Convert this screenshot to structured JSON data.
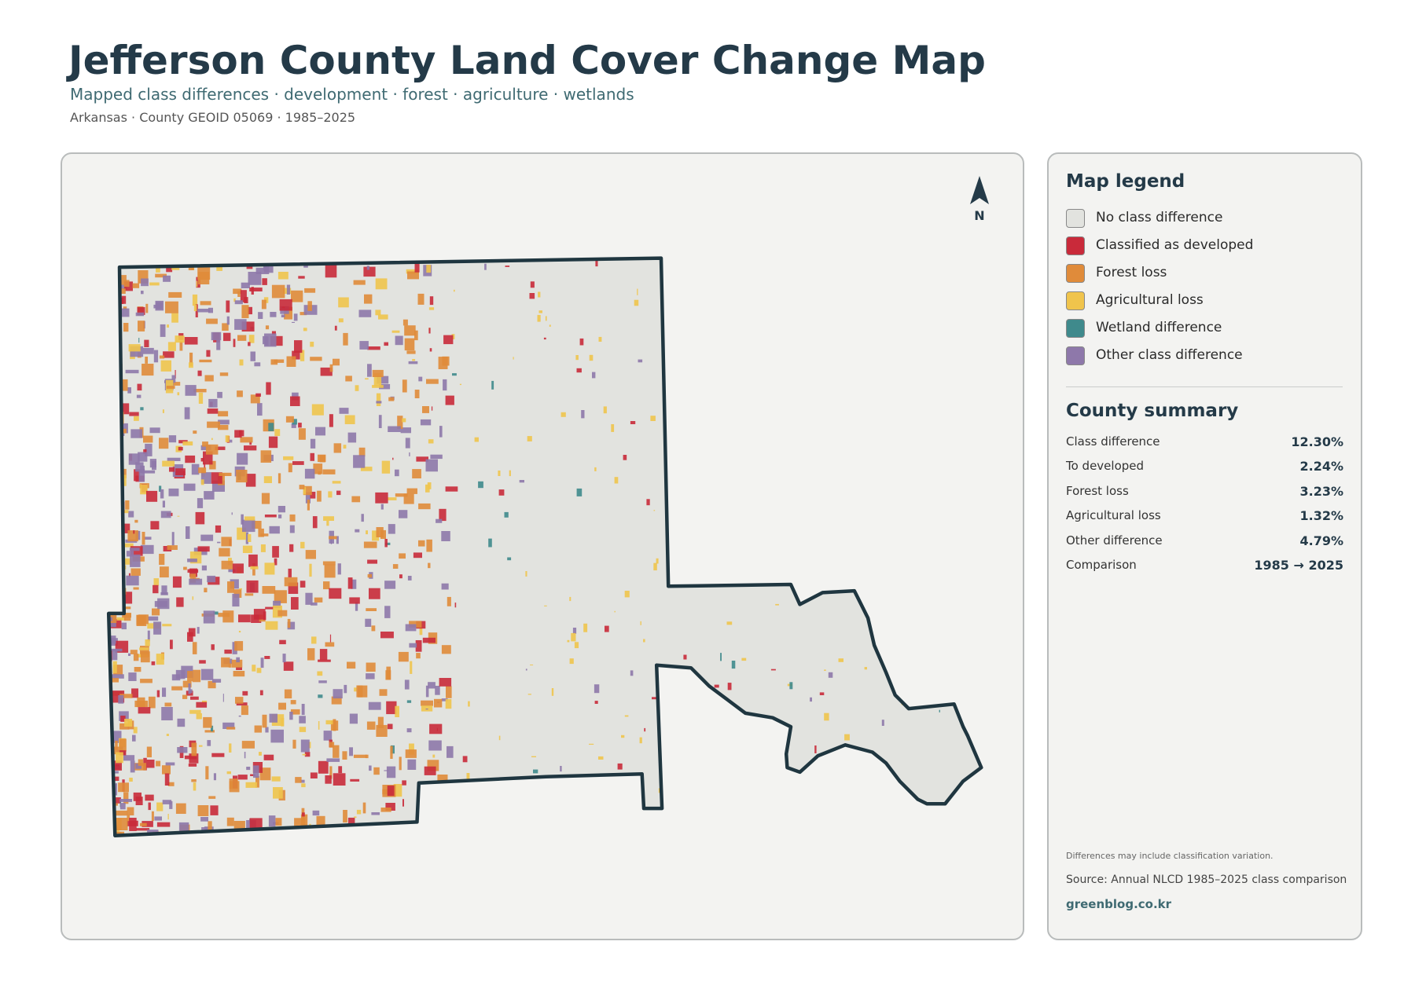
{
  "header": {
    "title": "Jefferson County Land Cover Change Map",
    "subtitle": "Mapped class differences · development · forest · agriculture · wetlands",
    "meta": "Arkansas · County GEOID 05069 · 1985–2025"
  },
  "map": {
    "north_label": "N"
  },
  "legend": {
    "title": "Map legend",
    "items": [
      {
        "label": "No class difference",
        "color": "#e2e3df"
      },
      {
        "label": "Classified as developed",
        "color": "#c92a3a"
      },
      {
        "label": "Forest loss",
        "color": "#e08b3a"
      },
      {
        "label": "Agricultural loss",
        "color": "#f0c44c"
      },
      {
        "label": "Wetland difference",
        "color": "#3f8a8c"
      },
      {
        "label": "Other class difference",
        "color": "#8e78aa"
      }
    ]
  },
  "summary": {
    "title": "County summary",
    "rows": [
      [
        "Class difference",
        "12.30%"
      ],
      [
        "To developed",
        "2.24%"
      ],
      [
        "Forest loss",
        "3.23%"
      ],
      [
        "Agricultural loss",
        "1.32%"
      ],
      [
        "Other difference",
        "4.79%"
      ],
      [
        "Comparison",
        "1985 → 2025"
      ]
    ]
  },
  "notes": {
    "caveat": "Differences may include classification variation.",
    "source": "Source: Annual NLCD 1985–2025 class comparison",
    "site": "greenblog.co.kr"
  }
}
